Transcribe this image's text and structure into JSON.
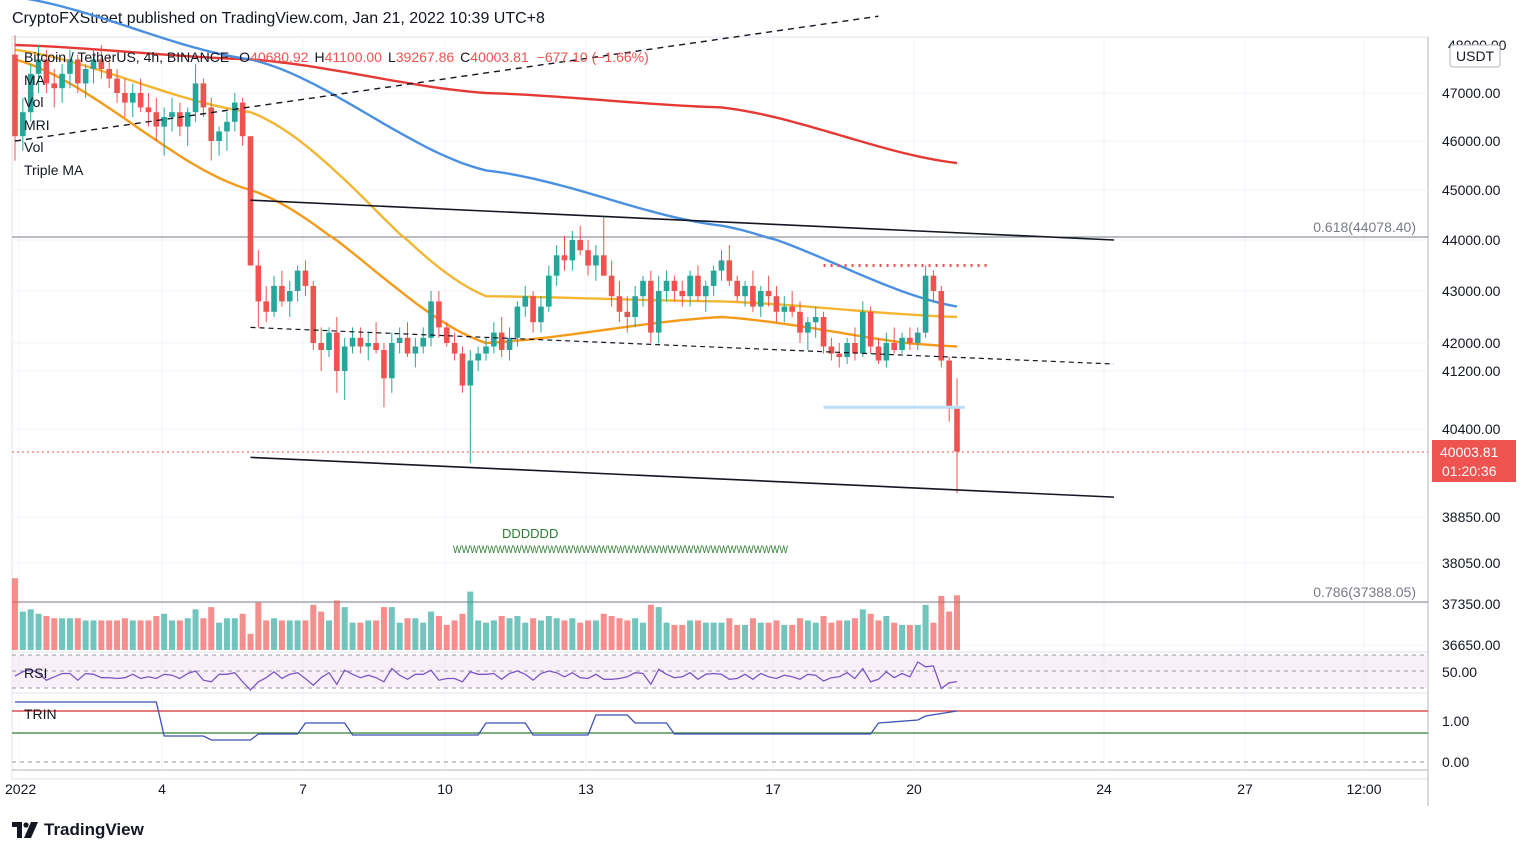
{
  "header": {
    "publisher_line": "CryptoFXStreet published on TradingView.com, Jan 21, 2022 10:39 UTC+8"
  },
  "symbol": {
    "name": "Bitcoin / TetherUS, 4h, BINANCE",
    "open_label": "O",
    "open": "40680.92",
    "high_label": "H",
    "high": "41100.00",
    "low_label": "L",
    "low": "39267.86",
    "close_label": "C",
    "close": "40003.81",
    "change": "−677.10 (−1.66%)"
  },
  "indicators": [
    "MA",
    "Vol",
    "MRI",
    "Vol",
    "Triple MA"
  ],
  "currency": "USDT",
  "price_axis": [
    "47000.00",
    "46000.00",
    "45000.00",
    "44000.00",
    "43000.00",
    "42000.00",
    "41200.00",
    "40400.00",
    "38850.00",
    "38050.00",
    "37350.00",
    "36650.00"
  ],
  "last_price": {
    "value": "40003.81",
    "countdown": "01:20:36",
    "color": "#ef5350"
  },
  "fib_levels": [
    {
      "label": "0.618(44078.40)",
      "price": 44078.4
    },
    {
      "label": "0.786(37388.05)",
      "price": 37388.05
    }
  ],
  "annotations": {
    "d_text": "DDDDDD",
    "w_text": "WWWWWWWWWWWWWWWWWWWWWWWWWWWWWWWWWWWWWWW"
  },
  "rsi": {
    "label": "RSI",
    "tick": "50.00"
  },
  "trin": {
    "label": "TRIN",
    "ticks": [
      "1.00",
      "0.00"
    ]
  },
  "time_axis": [
    "2022",
    "4",
    "7",
    "10",
    "13",
    "17",
    "20",
    "24",
    "27",
    "12:00"
  ],
  "footer": {
    "brand": "TradingView"
  },
  "colors": {
    "up": "#26a69a",
    "down": "#ef5350",
    "ma_red": "#e53935",
    "ma_blue": "#4a90e2",
    "ma_orange": "#f59b1b",
    "ma_yellow": "#f2b632"
  },
  "chart_data": {
    "type": "candlestick",
    "candles_ohlc": [
      [
        47800,
        48200,
        45600,
        46100
      ],
      [
        46100,
        46900,
        45800,
        46600
      ],
      [
        46600,
        47600,
        46400,
        47400
      ],
      [
        47400,
        48000,
        47000,
        47700
      ],
      [
        47700,
        47900,
        47000,
        47200
      ],
      [
        47200,
        47500,
        46700,
        47100
      ],
      [
        47100,
        47600,
        46800,
        47400
      ],
      [
        47400,
        47900,
        47100,
        47700
      ],
      [
        47700,
        47800,
        47000,
        47200
      ],
      [
        47200,
        47600,
        46900,
        47500
      ],
      [
        47500,
        47900,
        47200,
        47700
      ],
      [
        47700,
        48000,
        47300,
        47500
      ],
      [
        47500,
        47800,
        47100,
        47300
      ],
      [
        47300,
        47500,
        46800,
        47000
      ],
      [
        47000,
        47300,
        46500,
        46800
      ],
      [
        46800,
        47200,
        46500,
        47000
      ],
      [
        47000,
        47300,
        46600,
        46700
      ],
      [
        46700,
        47000,
        46300,
        46600
      ],
      [
        46600,
        46900,
        46000,
        46300
      ],
      [
        46300,
        46700,
        45700,
        46500
      ],
      [
        46500,
        46900,
        46200,
        46600
      ],
      [
        46600,
        46800,
        46100,
        46300
      ],
      [
        46300,
        46700,
        45900,
        46600
      ],
      [
        46600,
        47600,
        46400,
        47200
      ],
      [
        47200,
        47300,
        46500,
        46700
      ],
      [
        46700,
        46900,
        45600,
        46000
      ],
      [
        46000,
        46300,
        45700,
        46200
      ],
      [
        46200,
        46600,
        45800,
        46400
      ],
      [
        46400,
        47000,
        46200,
        46800
      ],
      [
        46800,
        46900,
        45900,
        46100
      ],
      [
        46100,
        44900,
        44800,
        43500
      ],
      [
        43500,
        43800,
        42300,
        42800
      ],
      [
        42800,
        43100,
        42400,
        42600
      ],
      [
        42600,
        43300,
        42500,
        43100
      ],
      [
        43100,
        43400,
        42700,
        42800
      ],
      [
        42800,
        43200,
        42500,
        43000
      ],
      [
        43000,
        43500,
        42800,
        43400
      ],
      [
        43400,
        43600,
        42900,
        43100
      ],
      [
        43100,
        43200,
        41800,
        42000
      ],
      [
        42000,
        42300,
        41200,
        41800
      ],
      [
        41800,
        42300,
        41600,
        42200
      ],
      [
        42200,
        42500,
        40900,
        41200
      ],
      [
        41200,
        42100,
        40800,
        41900
      ],
      [
        41900,
        42300,
        41700,
        42100
      ],
      [
        42100,
        42300,
        41700,
        41900
      ],
      [
        41900,
        42200,
        41500,
        42000
      ],
      [
        42000,
        42400,
        41700,
        41800
      ],
      [
        41800,
        42000,
        40700,
        41100
      ],
      [
        41100,
        42200,
        40900,
        42000
      ],
      [
        42000,
        42300,
        41700,
        42100
      ],
      [
        42100,
        42400,
        41600,
        41700
      ],
      [
        41700,
        42100,
        41300,
        41900
      ],
      [
        41900,
        42300,
        41700,
        42100
      ],
      [
        42100,
        43000,
        41900,
        42800
      ],
      [
        42800,
        43000,
        42100,
        42300
      ],
      [
        42300,
        42400,
        41900,
        42000
      ],
      [
        42000,
        42200,
        41500,
        41700
      ],
      [
        41700,
        41900,
        40900,
        41000
      ],
      [
        41000,
        41800,
        39800,
        41500
      ],
      [
        41500,
        41900,
        41200,
        41700
      ],
      [
        41700,
        42100,
        41500,
        41900
      ],
      [
        41900,
        42400,
        41700,
        42200
      ],
      [
        42200,
        42500,
        41600,
        41800
      ],
      [
        41800,
        42300,
        41500,
        42100
      ],
      [
        42100,
        42800,
        41900,
        42700
      ],
      [
        42700,
        43100,
        42500,
        42900
      ],
      [
        42900,
        43000,
        42200,
        42400
      ],
      [
        42400,
        42900,
        42200,
        42700
      ],
      [
        42700,
        43500,
        42600,
        43300
      ],
      [
        43300,
        43900,
        43100,
        43700
      ],
      [
        43700,
        44100,
        43400,
        43600
      ],
      [
        43600,
        44200,
        43400,
        44000
      ],
      [
        44000,
        44300,
        43700,
        43800
      ],
      [
        43800,
        44000,
        43300,
        43500
      ],
      [
        43500,
        43900,
        43200,
        43700
      ],
      [
        43700,
        44500,
        43500,
        43300
      ],
      [
        43300,
        43600,
        42700,
        42900
      ],
      [
        42900,
        43200,
        42400,
        42600
      ],
      [
        42600,
        42900,
        42200,
        42500
      ],
      [
        42500,
        43100,
        42300,
        42900
      ],
      [
        42900,
        43300,
        42700,
        43200
      ],
      [
        43200,
        43400,
        42000,
        42200
      ],
      [
        42200,
        43300,
        42000,
        43000
      ],
      [
        43000,
        43400,
        42800,
        43200
      ],
      [
        43200,
        43300,
        42800,
        43000
      ],
      [
        43000,
        43200,
        42700,
        42900
      ],
      [
        42900,
        43400,
        42700,
        43300
      ],
      [
        43300,
        43500,
        42800,
        42900
      ],
      [
        42900,
        43200,
        42600,
        43100
      ],
      [
        43100,
        43500,
        42900,
        43400
      ],
      [
        43400,
        43800,
        43200,
        43600
      ],
      [
        43600,
        43900,
        43100,
        43200
      ],
      [
        43200,
        43300,
        42800,
        42900
      ],
      [
        42900,
        43200,
        42700,
        43100
      ],
      [
        43100,
        43400,
        42600,
        42700
      ],
      [
        42700,
        43100,
        42500,
        43000
      ],
      [
        43000,
        43300,
        42700,
        42900
      ],
      [
        42900,
        43100,
        42400,
        42600
      ],
      [
        42600,
        42900,
        42400,
        42700
      ],
      [
        42700,
        43000,
        42500,
        42600
      ],
      [
        42600,
        42800,
        42000,
        42200
      ],
      [
        42200,
        42500,
        41800,
        42400
      ],
      [
        42400,
        42700,
        42100,
        42500
      ],
      [
        42500,
        42600,
        41700,
        41900
      ],
      [
        41900,
        42100,
        41500,
        41700
      ],
      [
        41700,
        42000,
        41300,
        41600
      ],
      [
        41600,
        42100,
        41400,
        42000
      ],
      [
        42000,
        42300,
        41500,
        41700
      ],
      [
        41700,
        42800,
        41600,
        42600
      ],
      [
        42600,
        42700,
        41700,
        41900
      ],
      [
        41900,
        42100,
        41400,
        41500
      ],
      [
        41500,
        42200,
        41300,
        42000
      ],
      [
        42000,
        42300,
        41700,
        41800
      ],
      [
        41800,
        42200,
        41700,
        42100
      ],
      [
        42100,
        42300,
        41800,
        42000
      ],
      [
        42000,
        42300,
        41800,
        42200
      ],
      [
        42200,
        43500,
        42100,
        43300
      ],
      [
        43300,
        43400,
        42800,
        43000
      ],
      [
        43000,
        43100,
        41300,
        41500
      ],
      [
        41500,
        41600,
        40500,
        40680
      ],
      [
        40680.92,
        41100.0,
        39267.86,
        40003.81
      ]
    ],
    "ma_red": [
      [
        0,
        48000
      ],
      [
        30,
        47700
      ],
      [
        60,
        47000
      ],
      [
        90,
        46700
      ],
      [
        120,
        45550
      ]
    ],
    "ma_blue": [
      [
        0,
        49000
      ],
      [
        30,
        47700
      ],
      [
        60,
        45400
      ],
      [
        90,
        44300
      ],
      [
        120,
        42700
      ]
    ],
    "ma_yellow": [
      [
        0,
        47900
      ],
      [
        30,
        46600
      ],
      [
        60,
        42900
      ],
      [
        90,
        42800
      ],
      [
        120,
        42500
      ]
    ],
    "ma_orange": [
      [
        0,
        47700
      ],
      [
        30,
        45000
      ],
      [
        60,
        42000
      ],
      [
        90,
        42500
      ],
      [
        120,
        41900
      ]
    ],
    "channel_upper": [
      [
        30,
        44800
      ],
      [
        140,
        44000
      ]
    ],
    "channel_lower": [
      [
        30,
        39900
      ],
      [
        140,
        39200
      ]
    ],
    "channel_mid": [
      [
        30,
        42300
      ],
      [
        140,
        41400
      ]
    ],
    "trendline_dashed": [
      [
        0,
        46000
      ],
      [
        110,
        48600
      ]
    ],
    "resistance_dotted": [
      [
        103,
        43500
      ],
      [
        124,
        43500
      ]
    ],
    "support_light": [
      [
        103,
        40700
      ],
      [
        121,
        40700
      ]
    ]
  }
}
